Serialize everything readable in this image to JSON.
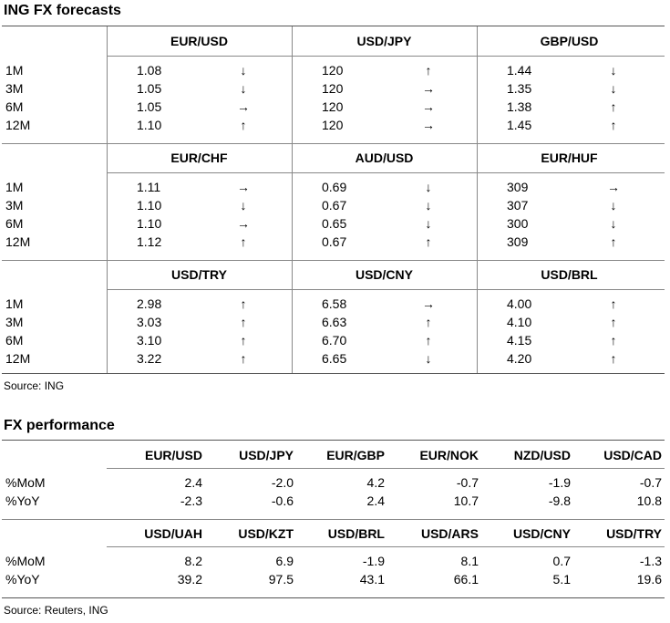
{
  "forecasts": {
    "title": "ING FX forecasts",
    "source": "Source: ING",
    "tenors": [
      "1M",
      "3M",
      "6M",
      "12M"
    ],
    "blocks": [
      [
        {
          "pair": "EUR/USD",
          "values": [
            "1.08",
            "1.05",
            "1.05",
            "1.10"
          ],
          "arrows": [
            "down",
            "down",
            "right",
            "up"
          ]
        },
        {
          "pair": "USD/JPY",
          "values": [
            "120",
            "120",
            "120",
            "120"
          ],
          "arrows": [
            "up",
            "right",
            "right",
            "right"
          ]
        },
        {
          "pair": "GBP/USD",
          "values": [
            "1.44",
            "1.35",
            "1.38",
            "1.45"
          ],
          "arrows": [
            "down",
            "down",
            "up",
            "up"
          ]
        }
      ],
      [
        {
          "pair": "EUR/CHF",
          "values": [
            "1.11",
            "1.10",
            "1.10",
            "1.12"
          ],
          "arrows": [
            "right",
            "down",
            "right",
            "up"
          ]
        },
        {
          "pair": "AUD/USD",
          "values": [
            "0.69",
            "0.67",
            "0.65",
            "0.67"
          ],
          "arrows": [
            "down",
            "down",
            "down",
            "up"
          ]
        },
        {
          "pair": "EUR/HUF",
          "values": [
            "309",
            "307",
            "300",
            "309"
          ],
          "arrows": [
            "right",
            "down",
            "down",
            "up"
          ]
        }
      ],
      [
        {
          "pair": "USD/TRY",
          "values": [
            "2.98",
            "3.03",
            "3.10",
            "3.22"
          ],
          "arrows": [
            "up",
            "up",
            "up",
            "up"
          ]
        },
        {
          "pair": "USD/CNY",
          "values": [
            "6.58",
            "6.63",
            "6.70",
            "6.65"
          ],
          "arrows": [
            "right",
            "up",
            "up",
            "down"
          ]
        },
        {
          "pair": "USD/BRL",
          "values": [
            "4.00",
            "4.10",
            "4.15",
            "4.20"
          ],
          "arrows": [
            "up",
            "up",
            "up",
            "up"
          ]
        }
      ]
    ]
  },
  "performance": {
    "title": "FX performance",
    "source": "Source: Reuters, ING",
    "rows": [
      "%MoM",
      "%YoY"
    ],
    "blocks": [
      {
        "pairs": [
          "EUR/USD",
          "USD/JPY",
          "EUR/GBP",
          "EUR/NOK",
          "NZD/USD",
          "USD/CAD"
        ],
        "mom": [
          "2.4",
          "-2.0",
          "4.2",
          "-0.7",
          "-1.9",
          "-0.7"
        ],
        "yoy": [
          "-2.3",
          "-0.6",
          "2.4",
          "10.7",
          "-9.8",
          "10.8"
        ]
      },
      {
        "pairs": [
          "USD/UAH",
          "USD/KZT",
          "USD/BRL",
          "USD/ARS",
          "USD/CNY",
          "USD/TRY"
        ],
        "mom": [
          "8.2",
          "6.9",
          "-1.9",
          "8.1",
          "0.7",
          "-1.3"
        ],
        "yoy": [
          "39.2",
          "97.5",
          "43.1",
          "66.1",
          "5.1",
          "19.6"
        ]
      }
    ]
  },
  "arrow_glyphs": {
    "up": "↑",
    "down": "↓",
    "right": "→"
  }
}
